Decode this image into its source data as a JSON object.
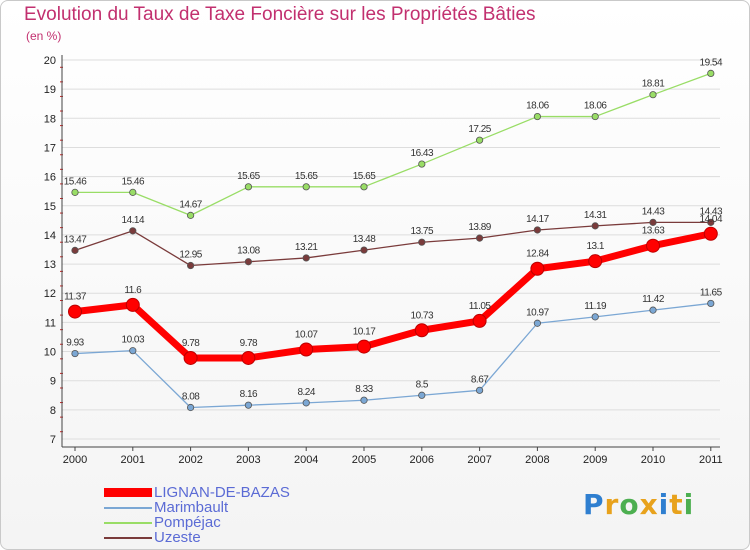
{
  "title": "Evolution du Taux de Taxe Foncière sur les Propriétés Bâties",
  "unit": "(en %)",
  "logo": {
    "letters": [
      "P",
      "r",
      "o",
      "x",
      "i",
      "t",
      "i"
    ],
    "colors": [
      "#2f7fd0",
      "#e8a21c",
      "#4caf50",
      "#e8a21c",
      "#2f7fd0",
      "#e8a21c",
      "#4caf50"
    ]
  },
  "chart_data": {
    "type": "line",
    "x": [
      "2000",
      "2001",
      "2002",
      "2003",
      "2004",
      "2005",
      "2006",
      "2007",
      "2008",
      "2009",
      "2010",
      "2011"
    ],
    "ylim": [
      7,
      20
    ],
    "yticks": [
      7,
      8,
      9,
      10,
      11,
      12,
      13,
      14,
      15,
      16,
      17,
      18,
      19,
      20
    ],
    "legend_position": "bottom-left",
    "series": [
      {
        "name": "LIGNAN-DE-BAZAS",
        "color": "#ff0000",
        "values": [
          11.37,
          11.6,
          9.78,
          9.78,
          10.07,
          10.17,
          10.73,
          11.05,
          12.84,
          13.1,
          13.63,
          14.04
        ],
        "labels": [
          "11.37",
          "11.6",
          "9.78",
          "9.78",
          "10.07",
          "10.17",
          "10.73",
          "11.05",
          "12.84",
          "13.1",
          "13.63",
          "14.04"
        ]
      },
      {
        "name": "Marimbault",
        "color": "#7ba7d4",
        "values": [
          9.93,
          10.03,
          8.08,
          8.16,
          8.24,
          8.33,
          8.5,
          8.67,
          10.97,
          11.19,
          11.42,
          11.65
        ],
        "labels": [
          "9.93",
          "10.03",
          "8.08",
          "8.16",
          "8.24",
          "8.33",
          "8.5",
          "8.67",
          "10.97",
          "11.19",
          "11.42",
          "11.65"
        ]
      },
      {
        "name": "Pompéjac",
        "color": "#99dd66",
        "values": [
          15.46,
          15.46,
          14.67,
          15.65,
          15.65,
          15.65,
          16.43,
          17.25,
          18.06,
          18.06,
          18.81,
          19.54
        ],
        "labels": [
          "15.46",
          "15.46",
          "14.67",
          "15.65",
          "15.65",
          "15.65",
          "16.43",
          "17.25",
          "18.06",
          "18.06",
          "18.81",
          "19.54"
        ]
      },
      {
        "name": "Uzeste",
        "color": "#7a3b3b",
        "values": [
          13.47,
          14.14,
          12.95,
          13.08,
          13.21,
          13.48,
          13.75,
          13.89,
          14.17,
          14.31,
          14.43,
          14.43
        ],
        "labels": [
          "13.47",
          "14.14",
          "12.95",
          "13.08",
          "13.21",
          "13.48",
          "13.75",
          "13.89",
          "14.17",
          "14.31",
          "14.43",
          "14.43"
        ]
      }
    ]
  }
}
